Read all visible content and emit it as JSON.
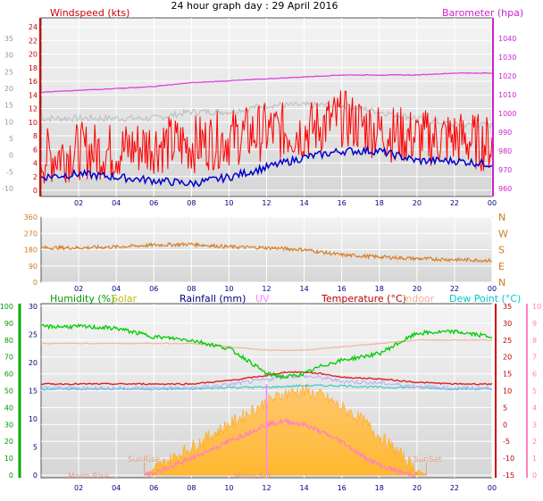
{
  "title": "24 hour graph day : 29 April 2016",
  "x_ticks": [
    "02",
    "04",
    "06",
    "08",
    "10",
    "12",
    "14",
    "16",
    "18",
    "20",
    "22",
    "00"
  ],
  "chart_data": [
    {
      "type": "line",
      "panel": "wind-barometer",
      "labels": {
        "left": "Windspeed (kts)",
        "right": "Barometer (hpa)"
      },
      "left_axis_ticks": [
        "24",
        "22",
        "20",
        "18",
        "16",
        "14",
        "12",
        "10",
        "8",
        "6",
        "4",
        "2",
        "0"
      ],
      "outer_left_axis_ticks": [
        "35",
        "30",
        "25",
        "20",
        "15",
        "10",
        "5",
        "0",
        "-5",
        "-10"
      ],
      "right_axis_ticks": [
        "1040",
        "1030",
        "1020",
        "1010",
        "1000",
        "990",
        "980",
        "970",
        "960"
      ],
      "right_axis_outer_ticks": [
        "1040",
        "1030",
        "1020",
        "1010",
        "1000",
        "990",
        "980",
        "970",
        "960"
      ],
      "ylim_wind": [
        0,
        25
      ],
      "ylim_baro": [
        960,
        1045
      ],
      "series": [
        {
          "name": "Windspeed",
          "color": "#ff0000",
          "x": [
            0,
            2,
            4,
            6,
            8,
            10,
            12,
            14,
            16,
            18,
            20,
            22,
            24
          ],
          "values": [
            5,
            6,
            6,
            7,
            7,
            8,
            9,
            9,
            11,
            9,
            8,
            8,
            7
          ]
        },
        {
          "name": "Barometer",
          "color": "#e040e0",
          "x": [
            0,
            2,
            4,
            6,
            8,
            10,
            12,
            14,
            16,
            18,
            20,
            22,
            24
          ],
          "values": [
            1010,
            1011,
            1012,
            1013,
            1015,
            1016,
            1017,
            1018,
            1019,
            1019,
            1019,
            1020,
            1020
          ]
        }
      ],
      "unlabelled_lines": [
        {
          "color": "#c0c0c0",
          "x": [
            0,
            2,
            4,
            6,
            8,
            10,
            12,
            14,
            16,
            18,
            20,
            22,
            24
          ],
          "values": [
            11,
            11,
            11,
            11,
            12,
            12,
            13,
            13,
            13,
            12,
            11,
            10,
            10
          ]
        },
        {
          "color": "#0000cc",
          "x": [
            0,
            2,
            4,
            6,
            8,
            10,
            12,
            14,
            16,
            18,
            20,
            22,
            24
          ],
          "values": [
            2,
            2.5,
            2,
            1.5,
            1,
            2,
            3.5,
            5,
            6,
            6,
            4.5,
            4.5,
            4
          ]
        }
      ]
    },
    {
      "type": "line",
      "panel": "wind-direction",
      "left_axis_ticks": [
        "360",
        "270",
        "180",
        "90",
        "0"
      ],
      "right_axis_ticks": [
        "N",
        "W",
        "S",
        "E",
        "N"
      ],
      "ylim": [
        0,
        360
      ],
      "series": [
        {
          "name": "Wind direction",
          "color": "#d87a20",
          "x": [
            0,
            2,
            4,
            6,
            8,
            10,
            12,
            14,
            16,
            18,
            20,
            22,
            24
          ],
          "values": [
            190,
            190,
            195,
            205,
            210,
            195,
            190,
            180,
            150,
            140,
            130,
            125,
            120
          ]
        }
      ]
    },
    {
      "type": "line",
      "panel": "temperature-humidity-solar",
      "labels": [
        "Humidity (%)",
        "Solar",
        "Rainfall (mm)",
        "UV",
        "Temperature (°C)",
        "Indoor",
        "Dew Point (°C)"
      ],
      "label_colors": [
        "#00aa00",
        "#c8c800",
        "#000080",
        "#ff80ff",
        "#c00000",
        "#f0b090",
        "#00c8c8"
      ],
      "humidity_axis_ticks": [
        "100",
        "90",
        "80",
        "70",
        "60",
        "50",
        "40",
        "30",
        "20",
        "10",
        "0"
      ],
      "solar_axis_ticks": [
        "30",
        "25",
        "20",
        "15",
        "10",
        "5",
        "0"
      ],
      "temp_axis_ticks": [
        "35",
        "30",
        "25",
        "20",
        "15",
        "10",
        "5",
        "0",
        "-5",
        "-10",
        "-15"
      ],
      "uv_axis_ticks": [
        "10",
        "9",
        "8",
        "7",
        "6",
        "5",
        "4",
        "3",
        "2",
        "1",
        "0"
      ],
      "annotations": [
        "SunRise",
        "SunSet",
        "Moon Rise",
        "Moon Set"
      ],
      "series": [
        {
          "name": "Humidity",
          "color": "#00cc00",
          "x": [
            0,
            2,
            4,
            6,
            8,
            10,
            11,
            12,
            13,
            14,
            15,
            16,
            18,
            19,
            20,
            22,
            24
          ],
          "values": [
            88,
            88,
            87,
            82,
            80,
            75,
            68,
            60,
            58,
            60,
            65,
            68,
            72,
            78,
            84,
            85,
            82
          ]
        },
        {
          "name": "Indoor",
          "color": "#f0b8a0",
          "x": [
            0,
            4,
            8,
            10,
            12,
            14,
            16,
            18,
            20,
            22,
            24
          ],
          "values": [
            24,
            24,
            24,
            23,
            22,
            22,
            23,
            24,
            25,
            25,
            25
          ]
        },
        {
          "name": "Temperature",
          "color": "#dd2222",
          "x": [
            0,
            4,
            8,
            10,
            12,
            13,
            14,
            15,
            16,
            18,
            20,
            22,
            24
          ],
          "values": [
            12,
            12,
            12,
            13,
            14.5,
            15.5,
            15.5,
            15,
            14,
            13.5,
            12.5,
            12,
            12
          ]
        },
        {
          "name": "Dew Point",
          "color": "#40c8c8",
          "x": [
            0,
            4,
            8,
            10,
            12,
            14,
            16,
            18,
            20,
            22,
            24
          ],
          "values": [
            10.5,
            10.5,
            10.5,
            11,
            11,
            11.5,
            11.5,
            11,
            11,
            10.5,
            10.5
          ]
        },
        {
          "name": "Solar",
          "color": "#ffbb33",
          "x": [
            5.5,
            6,
            7,
            8,
            9,
            10,
            11,
            12,
            13,
            14,
            15,
            16,
            17,
            18,
            19,
            20,
            20.5
          ],
          "values": [
            0,
            1,
            3,
            5,
            7,
            9,
            11,
            13,
            14.5,
            15,
            14,
            12,
            10,
            7,
            4,
            1,
            0
          ]
        },
        {
          "name": "UV",
          "color": "#ff80c0",
          "x": [
            5.5,
            7,
            8,
            9,
            10,
            11,
            12,
            13,
            14,
            15,
            16,
            17,
            18,
            19,
            20
          ],
          "values": [
            0,
            0.5,
            1,
            1.5,
            2,
            2.5,
            3,
            3.2,
            3,
            2.5,
            2,
            1.2,
            0.6,
            0.2,
            0
          ]
        }
      ]
    }
  ]
}
